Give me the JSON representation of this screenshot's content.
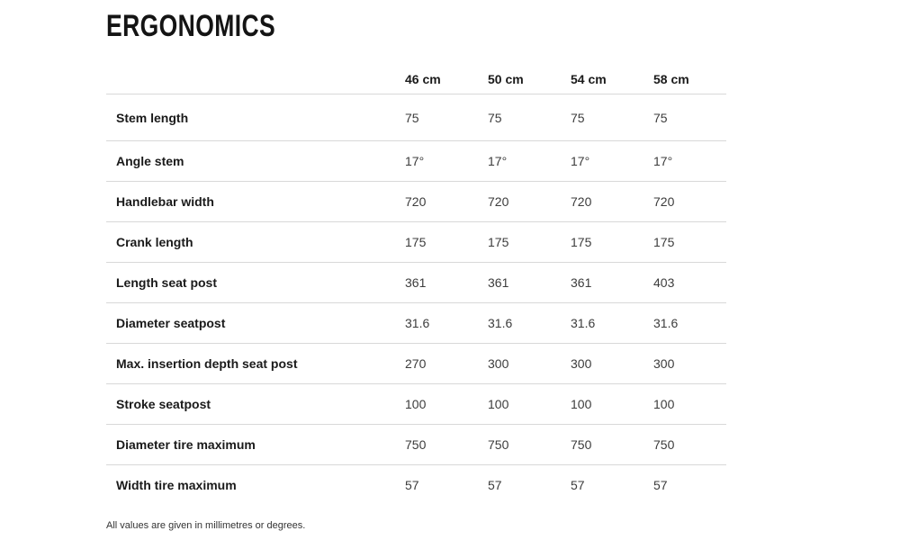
{
  "title": "ERGONOMICS",
  "table": {
    "columns": [
      "46 cm",
      "50 cm",
      "54 cm",
      "58 cm"
    ],
    "rows": [
      {
        "label": "Stem length",
        "values": [
          "75",
          "75",
          "75",
          "75"
        ]
      },
      {
        "label": "Angle stem",
        "values": [
          "17°",
          "17°",
          "17°",
          "17°"
        ]
      },
      {
        "label": "Handlebar width",
        "values": [
          "720",
          "720",
          "720",
          "720"
        ]
      },
      {
        "label": "Crank length",
        "values": [
          "175",
          "175",
          "175",
          "175"
        ]
      },
      {
        "label": "Length seat post",
        "values": [
          "361",
          "361",
          "361",
          "403"
        ]
      },
      {
        "label": "Diameter seatpost",
        "values": [
          "31.6",
          "31.6",
          "31.6",
          "31.6"
        ]
      },
      {
        "label": "Max. insertion depth seat post",
        "values": [
          "270",
          "300",
          "300",
          "300"
        ]
      },
      {
        "label": "Stroke seatpost",
        "values": [
          "100",
          "100",
          "100",
          "100"
        ]
      },
      {
        "label": "Diameter tire maximum",
        "values": [
          "750",
          "750",
          "750",
          "750"
        ]
      },
      {
        "label": "Width tire maximum",
        "values": [
          "57",
          "57",
          "57",
          "57"
        ]
      }
    ]
  },
  "footnote": "All values are given in millimetres or degrees.",
  "colors": {
    "title_text": "#141414",
    "label_text": "#1a1a1a",
    "value_text": "#3c3c3c",
    "divider": "#d8d8d8",
    "background": "#ffffff"
  }
}
